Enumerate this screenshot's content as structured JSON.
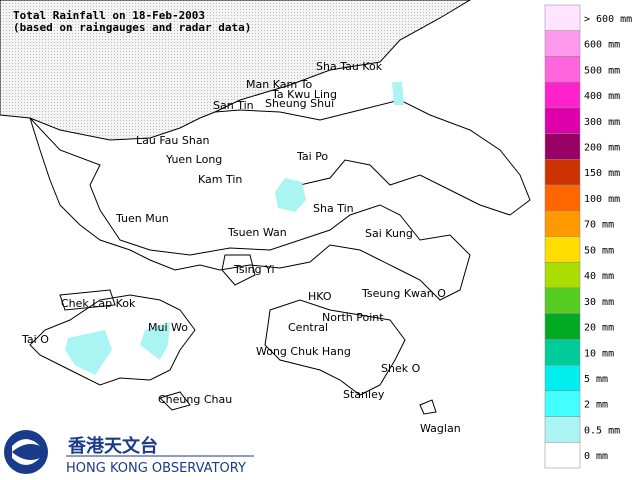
{
  "header": {
    "title": "Total Rainfall on 18-Feb-2003",
    "subtitle": "(based on raingauges and radar data)"
  },
  "places": [
    "Sha Tau Kok",
    "Man Kam To",
    "Ta Kwu Ling",
    "San Tin",
    "Sheung Shui",
    "Lau Fau Shan",
    "Yuen Long",
    "Tai Po",
    "Kam Tin",
    "Sha Tin",
    "Tuen Mun",
    "Tsuen Wan",
    "Sai Kung",
    "Tsing Yi",
    "Tseung Kwan O",
    "Chek Lap Kok",
    "HKO",
    "North Point",
    "Mui Wo",
    "Central",
    "Tai O",
    "Wong Chuk Hang",
    "Shek O",
    "Cheung Chau",
    "Stanley",
    "Waglan"
  ],
  "legend": [
    {
      "label": "> 600 mm",
      "color": "#ffe4ff"
    },
    {
      "label": "600 mm",
      "color": "#ff99ee"
    },
    {
      "label": "500 mm",
      "color": "#ff66dd"
    },
    {
      "label": "400 mm",
      "color": "#ff22cc"
    },
    {
      "label": "300 mm",
      "color": "#dd00aa"
    },
    {
      "label": "200 mm",
      "color": "#990066"
    },
    {
      "label": "150 mm",
      "color": "#cc3300"
    },
    {
      "label": "100 mm",
      "color": "#ff6600"
    },
    {
      "label": "70 mm",
      "color": "#ff9900"
    },
    {
      "label": "50 mm",
      "color": "#ffdd00"
    },
    {
      "label": "40 mm",
      "color": "#aadd00"
    },
    {
      "label": "30 mm",
      "color": "#55cc22"
    },
    {
      "label": "20 mm",
      "color": "#00aa22"
    },
    {
      "label": "10 mm",
      "color": "#00cc99"
    },
    {
      "label": "5 mm",
      "color": "#00eeee"
    },
    {
      "label": "2 mm",
      "color": "#44ffff"
    },
    {
      "label": "0.5 mm",
      "color": "#aaf4f4"
    },
    {
      "label": "0 mm",
      "color": "#ffffff"
    }
  ],
  "logo": {
    "chinese": "香港天文台",
    "english": "HONG KONG OBSERVATORY"
  }
}
